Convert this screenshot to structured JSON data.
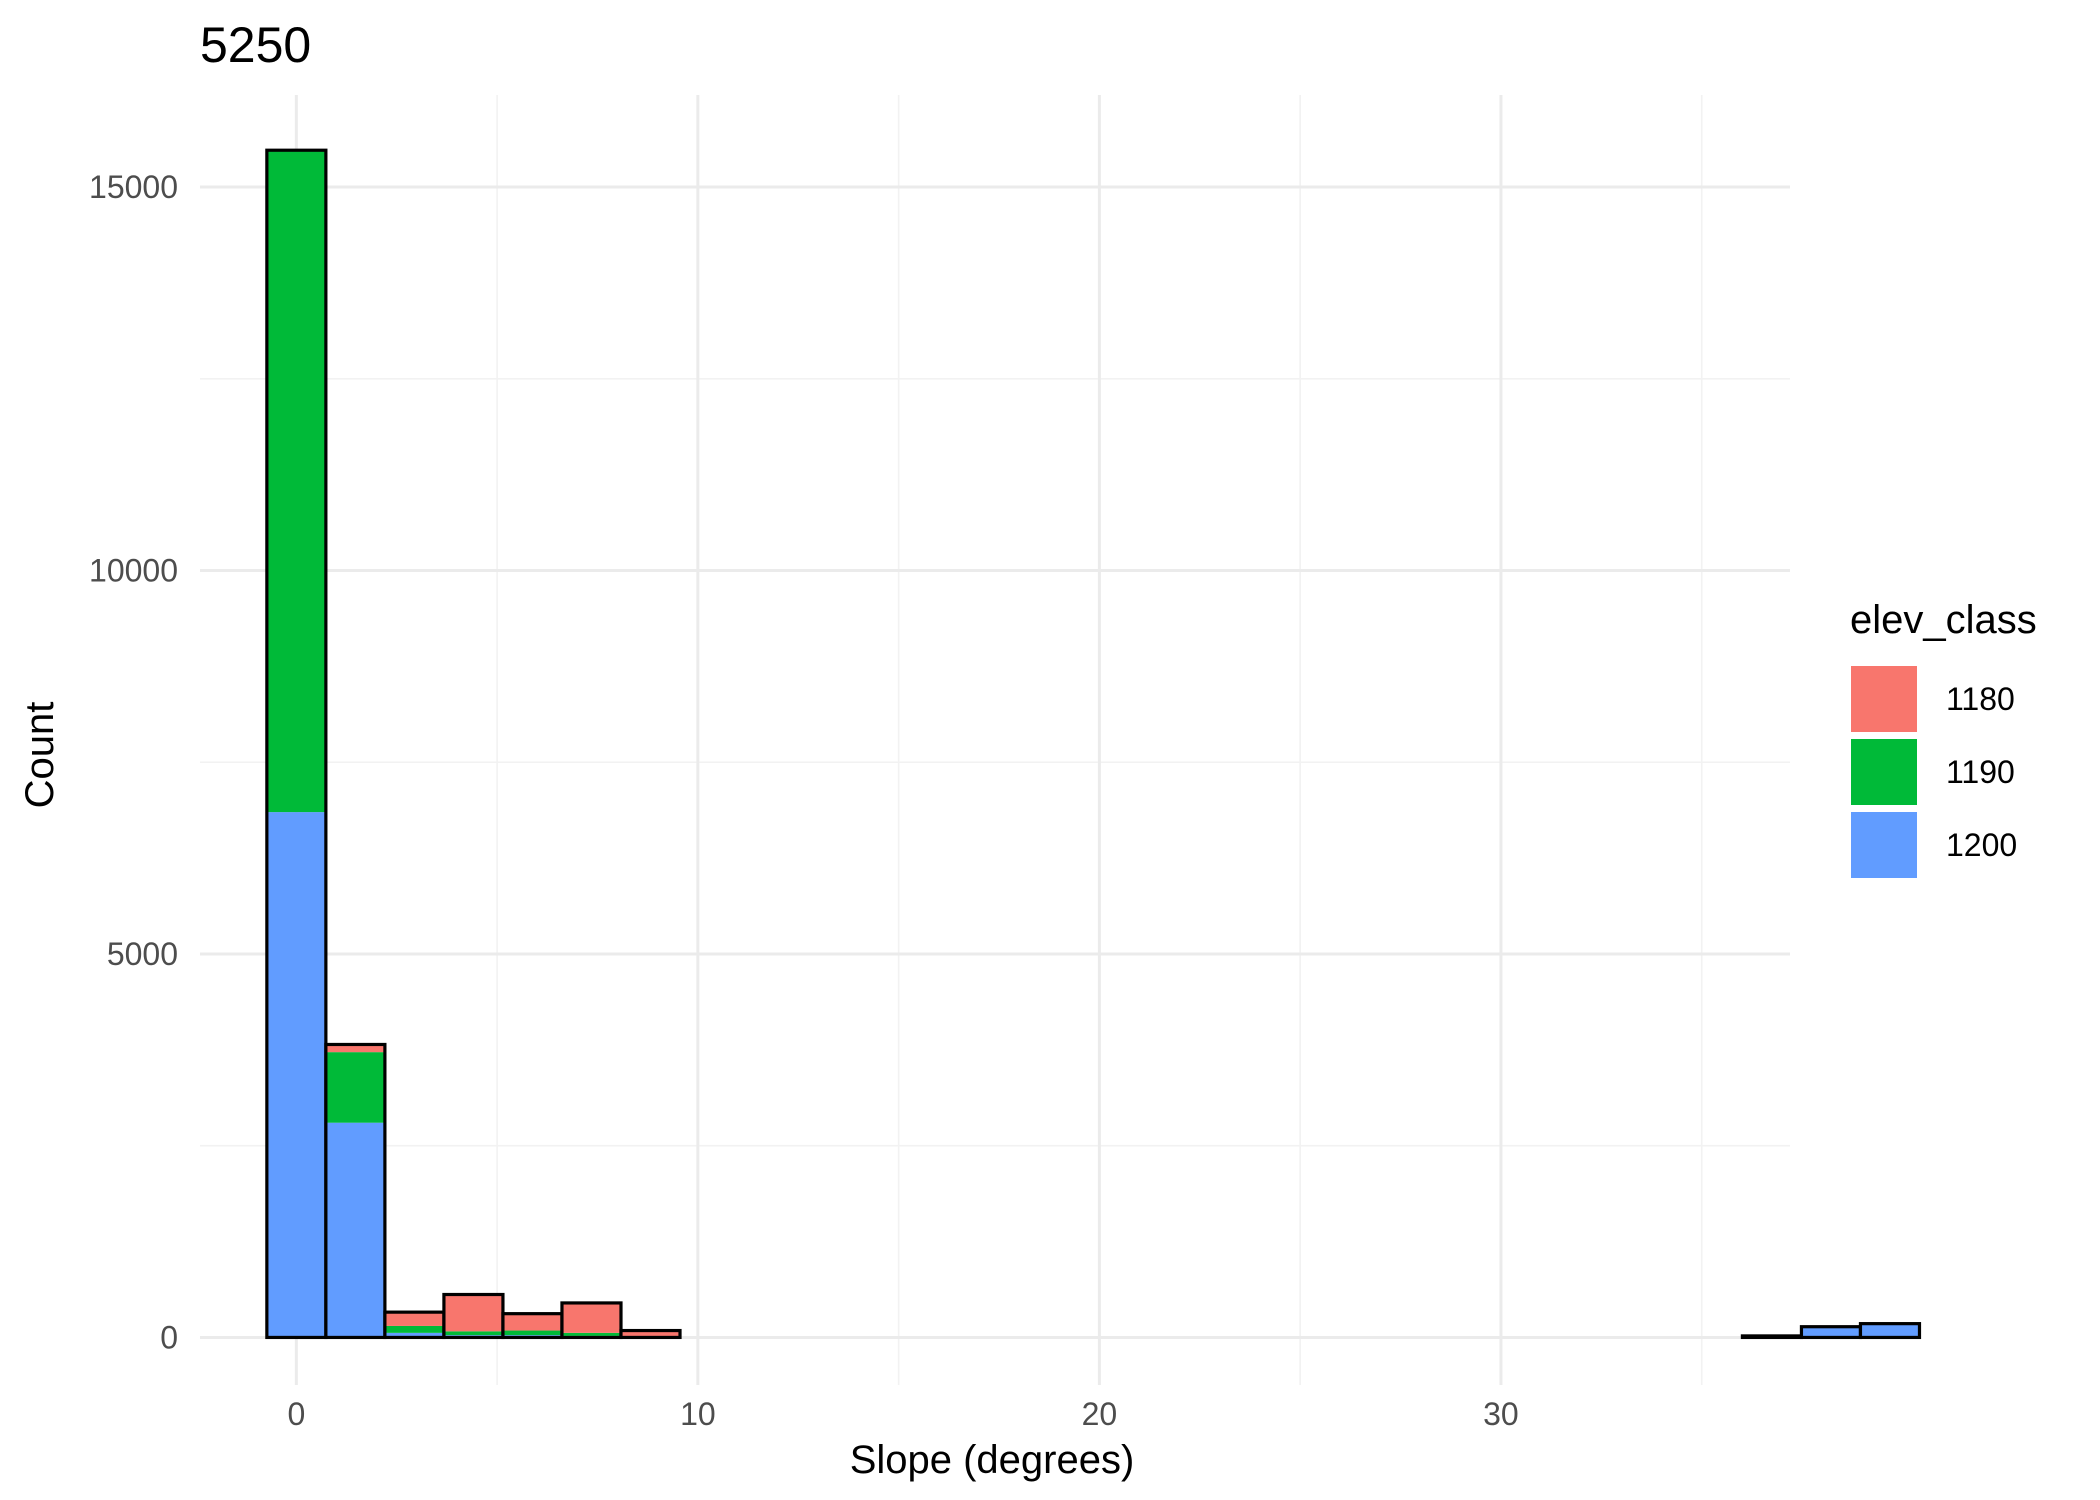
{
  "chart_data": {
    "type": "bar",
    "subtype": "stacked-histogram",
    "title": "5250",
    "xlabel": "Slope (degrees)",
    "ylabel": "Count",
    "xlim": [
      -2.4,
      37.2
    ],
    "ylim": [
      -620,
      16200
    ],
    "x_ticks": [
      0,
      10,
      20,
      30
    ],
    "y_ticks": [
      0,
      5000,
      10000,
      15000
    ],
    "grid": true,
    "bin_width": 1.47,
    "bin_start": -0.735,
    "legend": {
      "title": "elev_class",
      "position": "right",
      "entries": [
        {
          "label": "1180",
          "color": "#F8766D"
        },
        {
          "label": "1190",
          "color": "#00BA38"
        },
        {
          "label": "1200",
          "color": "#619CFF"
        }
      ]
    },
    "stack_order": [
      "1200",
      "1190",
      "1180"
    ],
    "series": [
      {
        "name": "1180",
        "color": "#F8766D",
        "values": [
          10,
          100,
          180,
          480,
          220,
          390,
          90,
          0,
          0,
          0,
          0,
          0,
          0,
          0,
          0,
          0,
          0,
          0,
          0,
          0,
          0,
          0,
          0,
          0,
          0,
          0,
          0,
          0
        ]
      },
      {
        "name": "1190",
        "color": "#00BA38",
        "values": [
          8620,
          920,
          90,
          50,
          60,
          40,
          0,
          0,
          0,
          0,
          0,
          0,
          0,
          0,
          0,
          0,
          0,
          0,
          0,
          0,
          0,
          0,
          0,
          0,
          0,
          0,
          0,
          0
        ]
      },
      {
        "name": "1200",
        "color": "#619CFF",
        "values": [
          6850,
          2800,
          60,
          30,
          30,
          20,
          0,
          0,
          0,
          0,
          0,
          0,
          0,
          0,
          0,
          0,
          0,
          0,
          0,
          0,
          0,
          0,
          0,
          0,
          0,
          20,
          140,
          180
        ]
      }
    ]
  }
}
